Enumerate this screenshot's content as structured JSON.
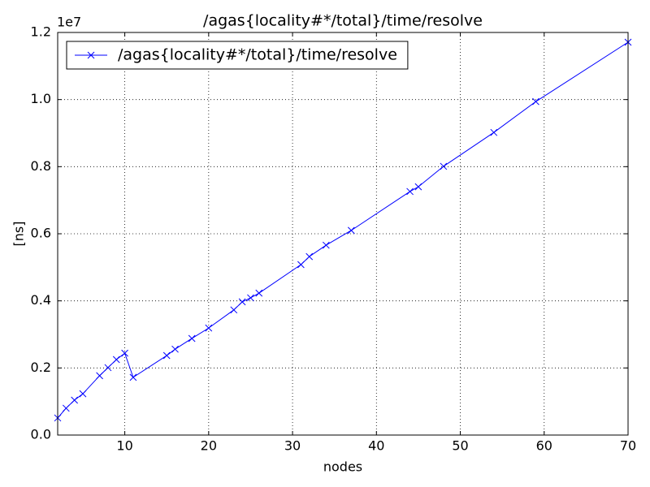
{
  "chart_data": {
    "type": "line",
    "title": "/agas{locality#*/total}/time/resolve",
    "x_label": "nodes",
    "y_label": "[ns]",
    "y_offset_label": "1e7",
    "x": [
      2,
      3,
      4,
      5,
      7,
      8,
      9,
      10,
      11,
      15,
      16,
      18,
      20,
      23,
      24,
      25,
      26,
      31,
      32,
      34,
      37,
      44,
      45,
      48,
      54,
      59,
      70
    ],
    "series": [
      {
        "name": "/agas{locality#*/total}/time/resolve",
        "color": "#0000ff",
        "values": [
          0.051,
          0.08,
          0.104,
          0.123,
          0.177,
          0.201,
          0.225,
          0.244,
          0.172,
          0.237,
          0.256,
          0.288,
          0.319,
          0.373,
          0.397,
          0.409,
          0.423,
          0.508,
          0.532,
          0.566,
          0.61,
          0.726,
          0.74,
          0.801,
          0.902,
          0.994,
          1.171
        ]
      }
    ],
    "xlim": [
      2,
      70
    ],
    "xticks": [
      10,
      20,
      30,
      40,
      50,
      60,
      70
    ],
    "ylim": [
      0,
      1.2
    ],
    "yticks": [
      {
        "value": 0,
        "label": "0.0"
      },
      0.2,
      0.4,
      0.6,
      0.8,
      {
        "value": 1,
        "label": "1.0"
      },
      1.2
    ],
    "grid": true,
    "legend": "upper left"
  }
}
